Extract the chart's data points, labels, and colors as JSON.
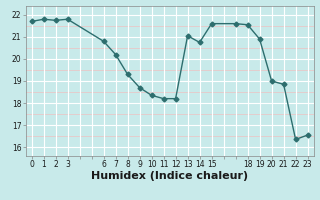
{
  "x": [
    0,
    1,
    2,
    3,
    6,
    7,
    8,
    9,
    10,
    11,
    12,
    13,
    14,
    15,
    17,
    18,
    19,
    20,
    21,
    22,
    23
  ],
  "y": [
    21.7,
    21.8,
    21.75,
    21.8,
    20.8,
    20.2,
    19.3,
    18.7,
    18.35,
    18.2,
    18.2,
    21.05,
    20.75,
    21.6,
    21.6,
    21.55,
    20.9,
    19.0,
    18.85,
    16.35,
    16.55
  ],
  "xlabel": "Humidex (Indice chaleur)",
  "xlim": [
    -0.5,
    23.5
  ],
  "ylim": [
    15.6,
    22.4
  ],
  "yticks": [
    16,
    17,
    18,
    19,
    20,
    21,
    22
  ],
  "xtick_positions": [
    0,
    1,
    2,
    3,
    4,
    5,
    6,
    7,
    8,
    9,
    10,
    11,
    12,
    13,
    14,
    15,
    16,
    17,
    18,
    19,
    20,
    21,
    22,
    23
  ],
  "xtick_labels": [
    "0",
    "1",
    "2",
    "3",
    "",
    "",
    "6",
    "7",
    "8",
    "9",
    "10",
    "11",
    "12",
    "13",
    "14",
    "15",
    "",
    "",
    "18",
    "19",
    "20",
    "21",
    "22",
    "23"
  ],
  "line_color": "#2d6e6e",
  "marker": "D",
  "marker_size": 2.5,
  "bg_color": "#c8eaea",
  "grid_color": "#ffffff",
  "grid_pink_color": "#e8c8c8",
  "xlabel_fontsize": 8,
  "tick_fontsize": 5.5
}
